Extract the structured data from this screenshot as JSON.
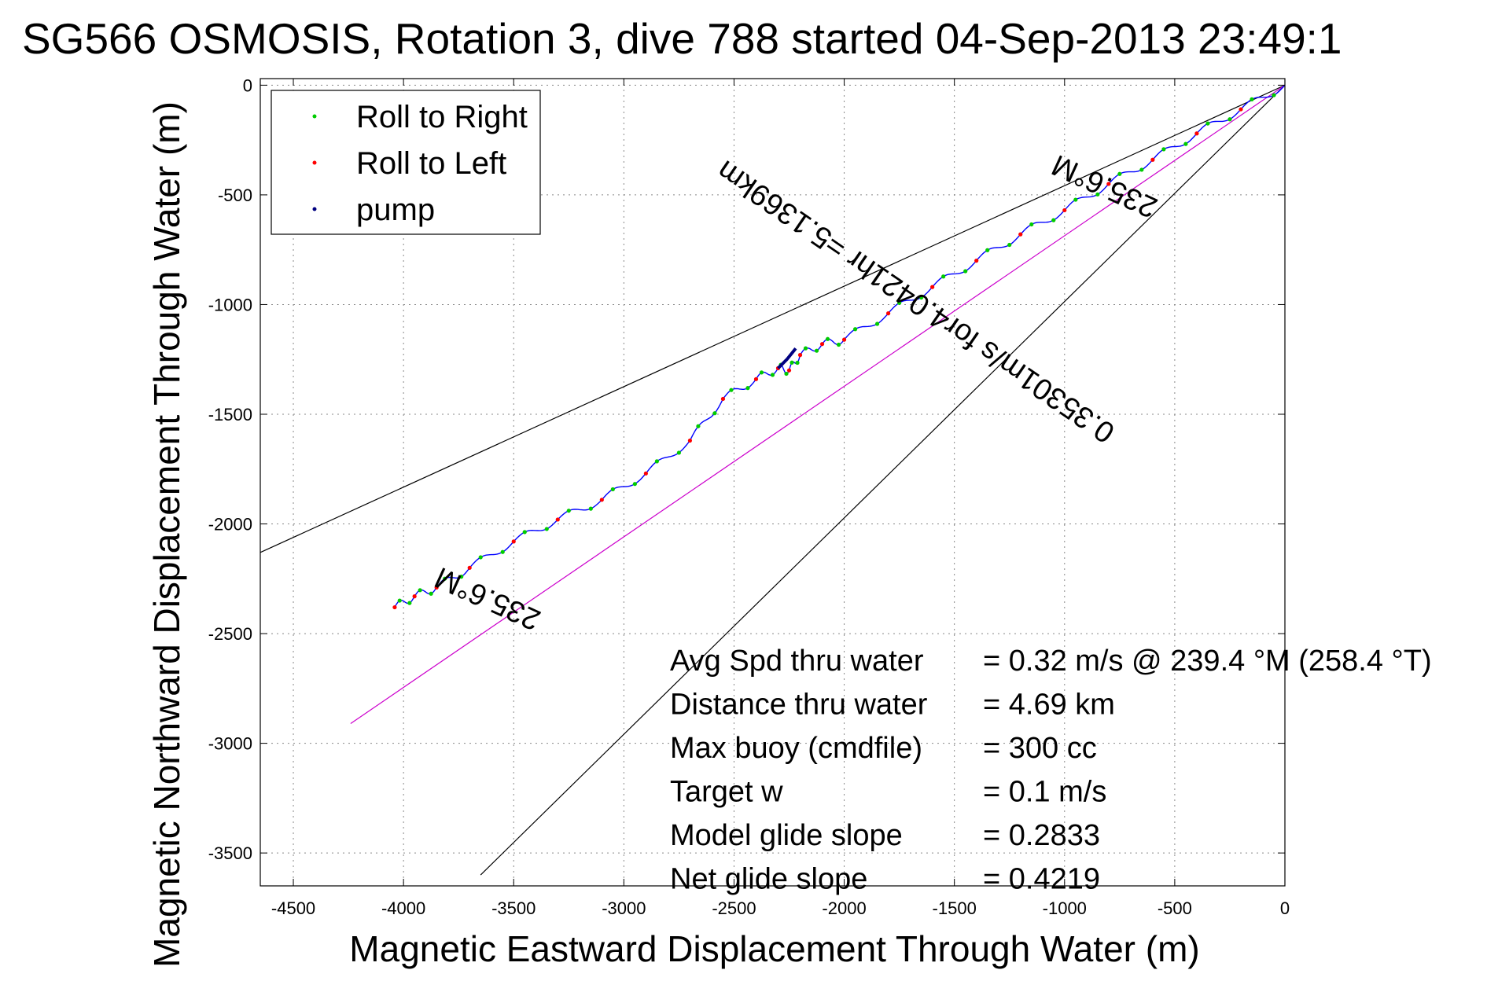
{
  "chart_data": {
    "type": "line",
    "title": "SG566 OSMOSIS, Rotation 3, dive 788 started 04-Sep-2013 23:49:1",
    "xlabel": "Magnetic Eastward Displacement Through Water (m)",
    "ylabel": "Magnetic Northward Displacement Through Water (m)",
    "xlim": [
      -4650,
      0
    ],
    "ylim": [
      -3650,
      30
    ],
    "xticks": [
      -4500,
      -4000,
      -3500,
      -3000,
      -2500,
      -2000,
      -1500,
      -1000,
      -500,
      0
    ],
    "yticks": [
      0,
      -500,
      -1000,
      -1500,
      -2000,
      -2500,
      -3000,
      -3500
    ],
    "grid": true,
    "legend_position": "top-left",
    "legend": [
      {
        "label": "Roll to Right",
        "color": "#00cc00"
      },
      {
        "label": "Roll to Left",
        "color": "#ff0000"
      },
      {
        "label": "pump",
        "color": "#000080"
      }
    ],
    "reference_lines": [
      {
        "color": "#000000",
        "x": [
          0,
          -4650
        ],
        "y": [
          0,
          -2130
        ]
      },
      {
        "color": "#000000",
        "x": [
          0,
          -3650
        ],
        "y": [
          0,
          -3600
        ]
      },
      {
        "color": "#cc00cc",
        "x": [
          0,
          -4240
        ],
        "y": [
          0,
          -2910
        ]
      }
    ],
    "track": {
      "color": "#0000ff",
      "x": [
        0,
        -200,
        -400,
        -600,
        -800,
        -1000,
        -1200,
        -1400,
        -1600,
        -1800,
        -2000,
        -2100,
        -2200,
        -2250,
        -2300,
        -2400,
        -2550,
        -2700,
        -2900,
        -3100,
        -3300,
        -3500,
        -3700,
        -3850,
        -3950,
        -4040
      ],
      "y": [
        0,
        -110,
        -220,
        -340,
        -450,
        -570,
        -680,
        -800,
        -920,
        -1040,
        -1160,
        -1180,
        -1230,
        -1300,
        -1290,
        -1340,
        -1430,
        -1620,
        -1770,
        -1890,
        -1980,
        -2080,
        -2200,
        -2290,
        -2330,
        -2380
      ]
    },
    "pump_segment": {
      "x": [
        -2300,
        -2260,
        -2220
      ],
      "y": [
        -1290,
        -1250,
        -1200
      ]
    },
    "annotations": [
      {
        "text": "235.6°M",
        "x": -800,
        "y": -420,
        "angle": 204.4
      },
      {
        "text": "0.35301m/s for4.0421hr =5.1369km",
        "x": -1650,
        "y": -950,
        "angle": 214.5
      },
      {
        "text": "235.6°M",
        "x": -3600,
        "y": -2300,
        "angle": 204.4
      }
    ]
  },
  "stats": [
    {
      "label": "Avg Spd thru water",
      "value": "=  0.32 m/s @ 239.4  °M (258.4 °T)"
    },
    {
      "label": "Distance thru water",
      "value": "=  4.69 km"
    },
    {
      "label": "Max buoy (cmdfile)",
      "value": "= 300 cc"
    },
    {
      "label": "Target w",
      "value": "= 0.1 m/s"
    },
    {
      "label": "Model glide slope",
      "value": "= 0.2833"
    },
    {
      "label": "Net glide slope",
      "value": "= 0.4219"
    }
  ]
}
